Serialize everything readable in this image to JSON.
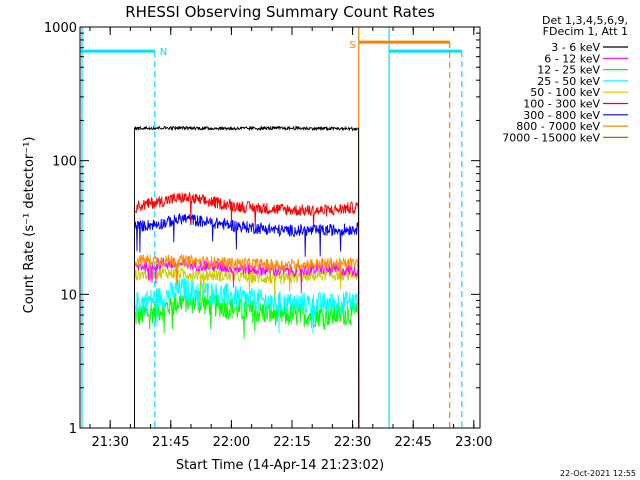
{
  "chart_data": {
    "type": "line",
    "title": "RHESSI Observing Summary Count Rates",
    "xlabel": "Start Time (14-Apr-14 21:23:02)",
    "ylabel": "Count Rate (s⁻¹ detector⁻¹)",
    "yscale": "log",
    "ylim": [
      1,
      1000
    ],
    "xlim_minutes": [
      -0.5,
      98.5
    ],
    "x_ticks": [
      {
        "label": "21:30",
        "m": 6.97
      },
      {
        "label": "21:45",
        "m": 21.97
      },
      {
        "label": "22:00",
        "m": 36.97
      },
      {
        "label": "22:15",
        "m": 51.97
      },
      {
        "label": "22:30",
        "m": 66.97
      },
      {
        "label": "22:45",
        "m": 81.97
      },
      {
        "label": "23:00",
        "m": 96.97
      }
    ],
    "y_ticks": [
      {
        "label": "1",
        "v": 1
      },
      {
        "label": "10",
        "v": 10
      },
      {
        "label": "100",
        "v": 100
      },
      {
        "label": "1000",
        "v": 1000
      }
    ],
    "legend": {
      "header": [
        "Det 1,3,4,5,6,9,",
        "FDecim 1, Att 1"
      ],
      "placement": "right"
    },
    "data_interval_minutes": [
      13.0,
      68.5
    ],
    "series": [
      {
        "name": "3 - 6 keV",
        "color": "#000000",
        "x": [
          13,
          20,
          30,
          40,
          50,
          60,
          68.5
        ],
        "values": [
          175,
          176,
          175,
          174,
          175,
          174,
          173
        ]
      },
      {
        "name": "6 - 12 keV",
        "color": "#ff00ff",
        "x": [
          13,
          20,
          30,
          40,
          50,
          60,
          68.5
        ],
        "values": [
          16,
          17,
          16.5,
          15.5,
          15,
          15.5,
          15
        ]
      },
      {
        "name": "12 - 25 keV",
        "color": "#00ff00",
        "x": [
          13,
          20,
          25,
          30,
          40,
          50,
          60,
          68.5
        ],
        "values": [
          6.8,
          7.8,
          9.0,
          8.6,
          7.6,
          7.0,
          7.0,
          7.2
        ]
      },
      {
        "name": "25 - 50 keV",
        "color": "#00ffff",
        "x": [
          13,
          20,
          25,
          30,
          40,
          50,
          60,
          68.5
        ],
        "values": [
          8.5,
          9.5,
          11.0,
          10.5,
          9.3,
          8.5,
          8.5,
          8.8
        ]
      },
      {
        "name": "50 - 100 keV",
        "color": "#cccc00",
        "x": [
          13,
          20,
          30,
          40,
          50,
          60,
          68.5
        ],
        "values": [
          14,
          14.5,
          14,
          13.5,
          13,
          14,
          14
        ]
      },
      {
        "name": "100 - 300 keV",
        "color": "#ff0000",
        "x": [
          13,
          20,
          25,
          30,
          40,
          50,
          60,
          68.5
        ],
        "values": [
          45,
          50,
          53,
          50,
          45,
          43,
          42,
          45
        ]
      },
      {
        "name": "300 - 800 keV",
        "color": "#0000ff",
        "x": [
          13,
          20,
          25,
          30,
          40,
          50,
          60,
          68.5
        ],
        "values": [
          32,
          34,
          37,
          35,
          32,
          30,
          30,
          31
        ]
      },
      {
        "name": "800 - 7000 keV",
        "color": "#ff8c00",
        "x": [
          13,
          20,
          30,
          40,
          50,
          60,
          68.5
        ],
        "values": [
          18,
          18,
          17.5,
          17,
          16.5,
          17,
          17
        ]
      },
      {
        "name": "7000 - 15000 keV",
        "color": "#808000",
        "x": [],
        "values": []
      }
    ],
    "markers": {
      "night": {
        "label": "N",
        "color": "#00e0ff",
        "value": 660,
        "segments": [
          [
            -0.5,
            18.0
          ],
          [
            76.0,
            94.0
          ]
        ],
        "solid_lines": [
          0.0,
          76.0
        ],
        "dashed_lines": [
          18.0,
          94.0
        ]
      },
      "saa": {
        "label": "S",
        "color": "#ff8000",
        "value": 770,
        "segments": [
          [
            68.5,
            91.0
          ]
        ],
        "solid_lines": [
          68.5
        ],
        "dashed_lines": [
          91.0
        ]
      }
    },
    "footer_timestamp": "22-Oct-2021 12:55"
  }
}
